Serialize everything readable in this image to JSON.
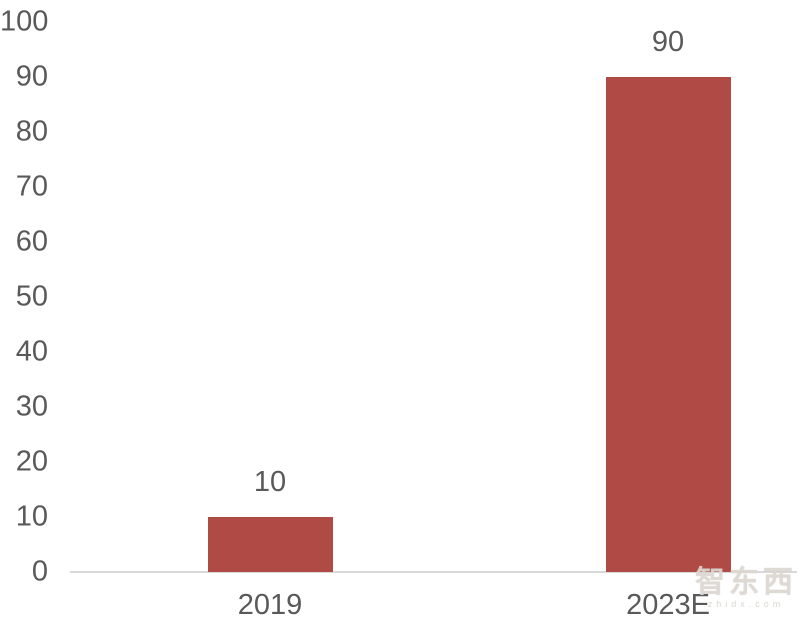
{
  "chart_data": {
    "type": "bar",
    "categories": [
      "2019",
      "2023E"
    ],
    "values": [
      10,
      90
    ],
    "data_labels": [
      "10",
      "90"
    ],
    "yticks": [
      0,
      10,
      20,
      30,
      40,
      50,
      60,
      70,
      80,
      90,
      100
    ],
    "ylim": [
      0,
      100
    ],
    "title": "",
    "xlabel": "",
    "ylabel": "",
    "grid": false,
    "legend": false,
    "bar_color": "#b04a44",
    "axis_line_color": "#d9d9d9",
    "tick_label_color": "#595959"
  },
  "watermark": {
    "text": "智东西",
    "subtext": "zhidx.com"
  }
}
